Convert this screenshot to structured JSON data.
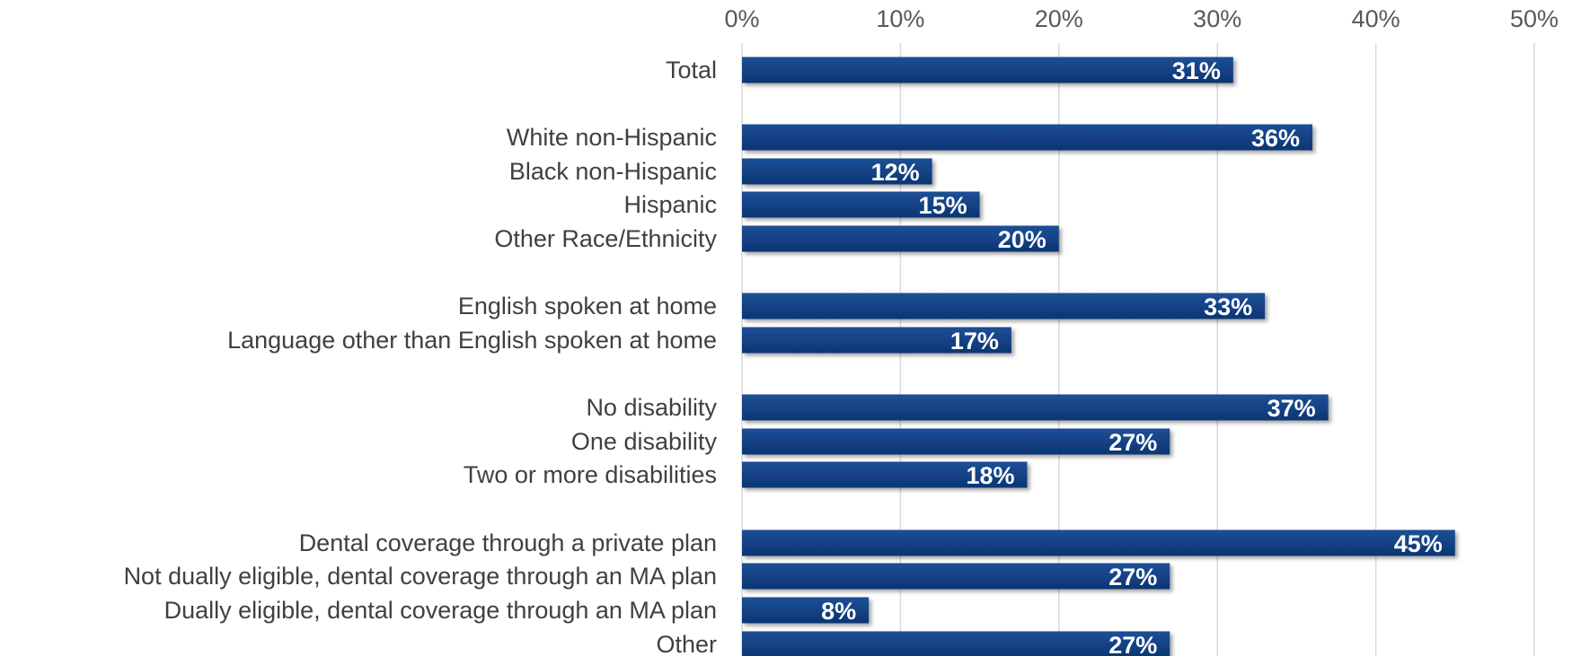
{
  "colors": {
    "bar": "#0f3c7d",
    "bar_light": "#1d4f96",
    "gridline": "#d9d9d9",
    "tick_text": "#595959",
    "category_text": "#404040",
    "data_label_text": "#ffffff"
  },
  "chart_data": {
    "type": "bar",
    "orientation": "horizontal",
    "title": "",
    "xlabel": "",
    "ylabel": "",
    "xlim": [
      0,
      50
    ],
    "x_ticks": [
      "0%",
      "10%",
      "20%",
      "30%",
      "40%",
      "50%"
    ],
    "x_axis_position": "top",
    "grid": true,
    "legend": "none",
    "categories": [
      "Total",
      "White non-Hispanic",
      "Black non-Hispanic",
      "Hispanic",
      "Other Race/Ethnicity",
      "English spoken at home",
      "Language other than English spoken at home",
      "No disability",
      "One disability",
      "Two or more disabilities",
      "Dental coverage through a private plan",
      "Not dually eligible, dental coverage through an MA plan",
      "Dually eligible, dental coverage through an MA plan",
      "Other"
    ],
    "values": [
      31,
      36,
      12,
      15,
      20,
      33,
      17,
      37,
      27,
      18,
      45,
      27,
      8,
      27
    ],
    "data_labels": [
      "31%",
      "36%",
      "12%",
      "15%",
      "20%",
      "33%",
      "17%",
      "37%",
      "27%",
      "18%",
      "45%",
      "27%",
      "8%",
      "27%"
    ],
    "groups": [
      [
        "Total"
      ],
      [
        "White non-Hispanic",
        "Black non-Hispanic",
        "Hispanic",
        "Other Race/Ethnicity"
      ],
      [
        "English spoken at home",
        "Language other than English spoken at home"
      ],
      [
        "No disability",
        "One disability",
        "Two or more disabilities"
      ],
      [
        "Dental coverage through a private plan",
        "Not dually eligible, dental coverage through an MA plan",
        "Dually eligible, dental coverage through an MA plan",
        "Other"
      ]
    ]
  }
}
